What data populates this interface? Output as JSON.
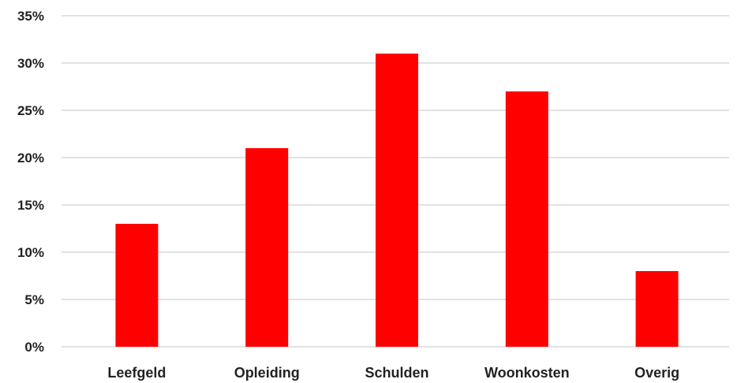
{
  "chart_data": {
    "type": "bar",
    "categories": [
      "Leefgeld",
      "Opleiding",
      "Schulden",
      "Woonkosten",
      "Overig"
    ],
    "values": [
      13,
      21,
      31,
      27,
      8
    ],
    "unit": "%",
    "ylim": [
      0,
      35
    ],
    "yticks": [
      0,
      5,
      10,
      15,
      20,
      25,
      30,
      35
    ],
    "ytick_labels": [
      "0%",
      "5%",
      "10%",
      "15%",
      "20%",
      "25%",
      "30%",
      "35%"
    ],
    "title": "",
    "xlabel": "",
    "ylabel": "",
    "grid": true,
    "legend": "none",
    "bar_color": "#ff0000",
    "grid_color": "#d9d9d9"
  }
}
